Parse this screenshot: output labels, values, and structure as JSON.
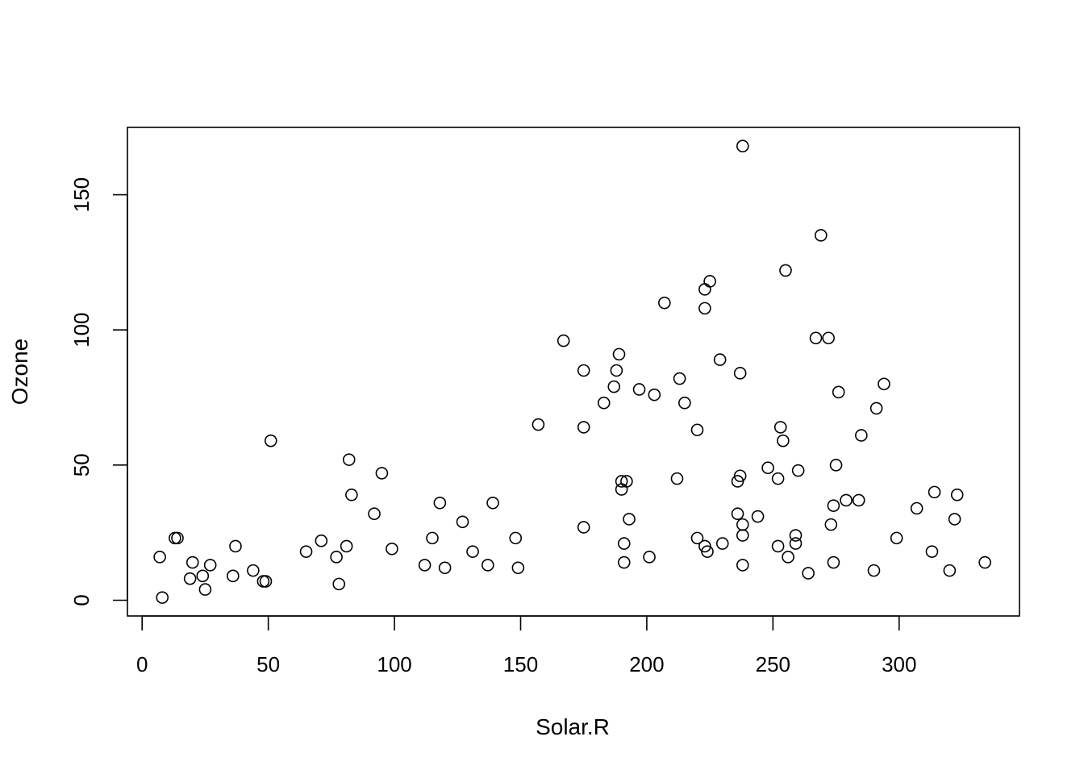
{
  "chart_data": {
    "type": "scatter",
    "xlabel": "Solar.R",
    "ylabel": "Ozone",
    "xlim": [
      0,
      350
    ],
    "ylim": [
      0,
      170
    ],
    "x_ticks": [
      0,
      50,
      100,
      150,
      200,
      250,
      300
    ],
    "y_ticks": [
      0,
      50,
      100,
      150
    ],
    "grid": false,
    "points": [
      [
        7,
        16
      ],
      [
        8,
        1
      ],
      [
        13,
        23
      ],
      [
        14,
        23
      ],
      [
        19,
        8
      ],
      [
        20,
        14
      ],
      [
        24,
        9
      ],
      [
        25,
        4
      ],
      [
        27,
        13
      ],
      [
        36,
        9
      ],
      [
        37,
        20
      ],
      [
        44,
        11
      ],
      [
        48,
        7
      ],
      [
        49,
        7
      ],
      [
        51,
        59
      ],
      [
        65,
        18
      ],
      [
        71,
        22
      ],
      [
        77,
        16
      ],
      [
        78,
        6
      ],
      [
        81,
        20
      ],
      [
        82,
        52
      ],
      [
        83,
        39
      ],
      [
        92,
        32
      ],
      [
        95,
        47
      ],
      [
        99,
        19
      ],
      [
        112,
        13
      ],
      [
        115,
        23
      ],
      [
        118,
        36
      ],
      [
        120,
        12
      ],
      [
        127,
        29
      ],
      [
        131,
        18
      ],
      [
        137,
        13
      ],
      [
        139,
        36
      ],
      [
        148,
        23
      ],
      [
        149,
        12
      ],
      [
        157,
        65
      ],
      [
        167,
        96
      ],
      [
        175,
        27
      ],
      [
        175,
        85
      ],
      [
        175,
        64
      ],
      [
        183,
        73
      ],
      [
        187,
        79
      ],
      [
        188,
        85
      ],
      [
        189,
        91
      ],
      [
        190,
        44
      ],
      [
        190,
        41
      ],
      [
        191,
        21
      ],
      [
        191,
        14
      ],
      [
        192,
        44
      ],
      [
        193,
        30
      ],
      [
        197,
        78
      ],
      [
        201,
        16
      ],
      [
        203,
        76
      ],
      [
        207,
        110
      ],
      [
        212,
        45
      ],
      [
        213,
        82
      ],
      [
        215,
        73
      ],
      [
        220,
        63
      ],
      [
        220,
        23
      ],
      [
        223,
        115
      ],
      [
        223,
        108
      ],
      [
        223,
        20
      ],
      [
        224,
        18
      ],
      [
        225,
        118
      ],
      [
        229,
        89
      ],
      [
        230,
        21
      ],
      [
        236,
        44
      ],
      [
        236,
        32
      ],
      [
        237,
        84
      ],
      [
        237,
        46
      ],
      [
        238,
        168
      ],
      [
        238,
        28
      ],
      [
        238,
        24
      ],
      [
        238,
        13
      ],
      [
        244,
        31
      ],
      [
        248,
        49
      ],
      [
        252,
        45
      ],
      [
        252,
        20
      ],
      [
        253,
        64
      ],
      [
        254,
        59
      ],
      [
        255,
        122
      ],
      [
        256,
        16
      ],
      [
        259,
        24
      ],
      [
        259,
        21
      ],
      [
        260,
        48
      ],
      [
        264,
        10
      ],
      [
        267,
        97
      ],
      [
        269,
        135
      ],
      [
        272,
        97
      ],
      [
        273,
        28
      ],
      [
        274,
        35
      ],
      [
        274,
        14
      ],
      [
        275,
        50
      ],
      [
        276,
        77
      ],
      [
        279,
        37
      ],
      [
        284,
        37
      ],
      [
        285,
        61
      ],
      [
        290,
        11
      ],
      [
        291,
        71
      ],
      [
        294,
        80
      ],
      [
        299,
        23
      ],
      [
        307,
        34
      ],
      [
        313,
        18
      ],
      [
        314,
        40
      ],
      [
        320,
        11
      ],
      [
        322,
        30
      ],
      [
        323,
        39
      ],
      [
        334,
        14
      ]
    ]
  }
}
